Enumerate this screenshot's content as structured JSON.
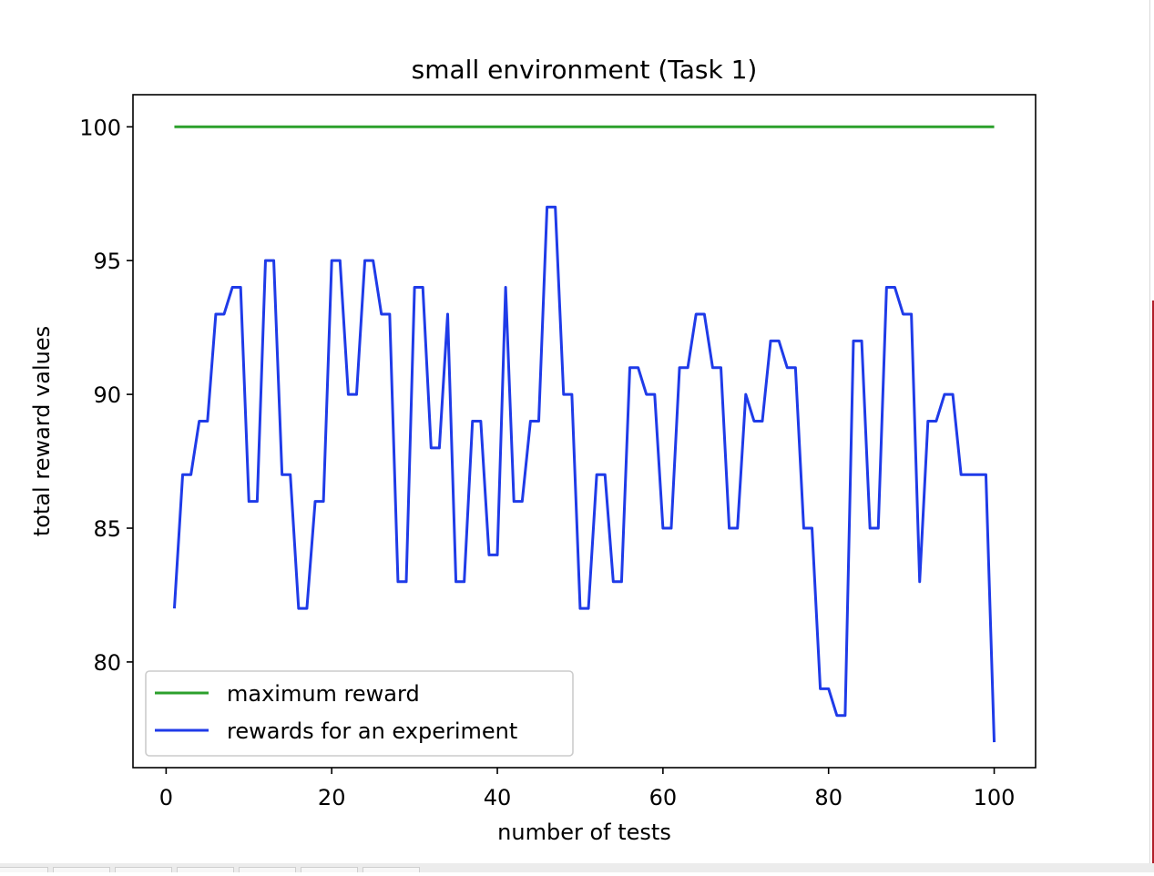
{
  "chart_data": {
    "type": "line",
    "title": "small environment (Task 1)",
    "xlabel": "number of tests",
    "ylabel": "total reward values",
    "xlim": [
      -4,
      105
    ],
    "ylim": [
      76.05,
      101.2
    ],
    "xticks": [
      0,
      20,
      40,
      60,
      80,
      100
    ],
    "yticks": [
      80,
      85,
      90,
      95,
      100
    ],
    "xtick_labels": [
      "0",
      "20",
      "40",
      "60",
      "80",
      "100"
    ],
    "ytick_labels": [
      "80",
      "85",
      "90",
      "95",
      "100"
    ],
    "grid": false,
    "legend_position": "lower-left",
    "x": [
      1,
      2,
      3,
      4,
      5,
      6,
      7,
      8,
      9,
      10,
      11,
      12,
      13,
      14,
      15,
      16,
      17,
      18,
      19,
      20,
      21,
      22,
      23,
      24,
      25,
      26,
      27,
      28,
      29,
      30,
      31,
      32,
      33,
      34,
      35,
      36,
      37,
      38,
      39,
      40,
      41,
      42,
      43,
      44,
      45,
      46,
      47,
      48,
      49,
      50,
      51,
      52,
      53,
      54,
      55,
      56,
      57,
      58,
      59,
      60,
      61,
      62,
      63,
      64,
      65,
      66,
      67,
      68,
      69,
      70,
      71,
      72,
      73,
      74,
      75,
      76,
      77,
      78,
      79,
      80,
      81,
      82,
      83,
      84,
      85,
      86,
      87,
      88,
      89,
      90,
      91,
      92,
      93,
      94,
      95,
      96,
      97,
      98,
      99,
      100
    ],
    "series": [
      {
        "name": "maximum reward",
        "color": "#2ca02c",
        "values": [
          100,
          100,
          100,
          100,
          100,
          100,
          100,
          100,
          100,
          100,
          100,
          100,
          100,
          100,
          100,
          100,
          100,
          100,
          100,
          100,
          100,
          100,
          100,
          100,
          100,
          100,
          100,
          100,
          100,
          100,
          100,
          100,
          100,
          100,
          100,
          100,
          100,
          100,
          100,
          100,
          100,
          100,
          100,
          100,
          100,
          100,
          100,
          100,
          100,
          100,
          100,
          100,
          100,
          100,
          100,
          100,
          100,
          100,
          100,
          100,
          100,
          100,
          100,
          100,
          100,
          100,
          100,
          100,
          100,
          100,
          100,
          100,
          100,
          100,
          100,
          100,
          100,
          100,
          100,
          100,
          100,
          100,
          100,
          100,
          100,
          100,
          100,
          100,
          100,
          100,
          100,
          100,
          100,
          100,
          100,
          100,
          100,
          100,
          100,
          100
        ]
      },
      {
        "name": "rewards for an experiment",
        "color": "#1f3be8",
        "values": [
          82,
          87,
          87,
          89,
          89,
          93,
          93,
          94,
          94,
          86,
          86,
          95,
          95,
          87,
          87,
          82,
          82,
          86,
          86,
          95,
          95,
          90,
          90,
          95,
          95,
          93,
          93,
          83,
          83,
          94,
          94,
          88,
          88,
          93,
          83,
          83,
          89,
          89,
          84,
          84,
          94,
          86,
          86,
          89,
          89,
          97,
          97,
          90,
          90,
          82,
          82,
          87,
          87,
          83,
          83,
          91,
          91,
          90,
          90,
          85,
          85,
          91,
          91,
          93,
          93,
          91,
          91,
          85,
          85,
          90,
          89,
          89,
          92,
          92,
          91,
          91,
          85,
          85,
          79,
          79,
          78,
          78,
          92,
          92,
          85,
          85,
          94,
          94,
          93,
          93,
          83,
          89,
          89,
          90,
          90,
          87,
          87,
          87,
          87,
          77
        ]
      }
    ]
  }
}
